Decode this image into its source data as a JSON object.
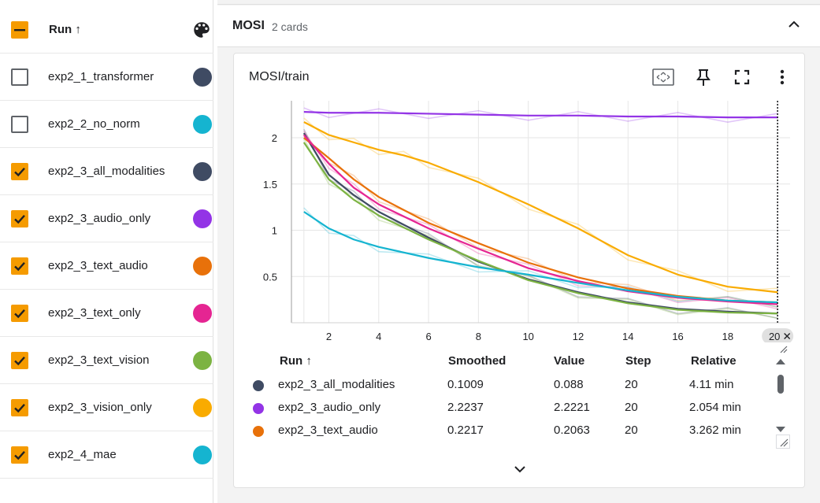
{
  "sidebar": {
    "header": {
      "label": "Run ↑",
      "palette_icon": "palette-icon"
    },
    "runs": [
      {
        "label": "exp2_1_transformer",
        "checked": false,
        "color": "#3f4b63"
      },
      {
        "label": "exp2_2_no_norm",
        "checked": false,
        "color": "#15b4d0"
      },
      {
        "label": "exp2_3_all_modalities",
        "checked": true,
        "color": "#3f4b63"
      },
      {
        "label": "exp2_3_audio_only",
        "checked": true,
        "color": "#9334e6"
      },
      {
        "label": "exp2_3_text_audio",
        "checked": true,
        "color": "#e8710a"
      },
      {
        "label": "exp2_3_text_only",
        "checked": true,
        "color": "#e52592"
      },
      {
        "label": "exp2_3_text_vision",
        "checked": true,
        "color": "#7cb342"
      },
      {
        "label": "exp2_3_vision_only",
        "checked": true,
        "color": "#f9ab00"
      },
      {
        "label": "exp2_4_mae",
        "checked": true,
        "color": "#15b4d0"
      }
    ]
  },
  "group": {
    "title": "MOSI",
    "count": "2 cards"
  },
  "card": {
    "title": "MOSI/train",
    "step_badge": "20"
  },
  "chart_data": {
    "type": "line",
    "x_ticks": [
      "2",
      "4",
      "6",
      "8",
      "10",
      "12",
      "14",
      "16",
      "18"
    ],
    "y_ticks": [
      "0.5",
      "1",
      "1.5",
      "2"
    ],
    "xlim": [
      0.5,
      20.5
    ],
    "ylim": [
      0,
      2.4
    ],
    "series": [
      {
        "name": "exp2_3_all_modalities",
        "color": "#3f4b63",
        "x": [
          1,
          2,
          3,
          4,
          6,
          8,
          10,
          12,
          14,
          16,
          18,
          20
        ],
        "y": [
          2.05,
          1.6,
          1.38,
          1.2,
          0.92,
          0.66,
          0.47,
          0.33,
          0.22,
          0.15,
          0.12,
          0.1
        ]
      },
      {
        "name": "exp2_3_audio_only",
        "color": "#9334e6",
        "x": [
          1,
          2,
          4,
          6,
          8,
          10,
          12,
          14,
          16,
          18,
          20
        ],
        "y": [
          2.28,
          2.27,
          2.27,
          2.26,
          2.25,
          2.24,
          2.24,
          2.23,
          2.23,
          2.22,
          2.22
        ]
      },
      {
        "name": "exp2_3_text_audio",
        "color": "#e8710a",
        "x": [
          1,
          2,
          3,
          4,
          6,
          8,
          10,
          12,
          14,
          16,
          18,
          20
        ],
        "y": [
          2.0,
          1.78,
          1.55,
          1.36,
          1.08,
          0.86,
          0.65,
          0.49,
          0.37,
          0.29,
          0.24,
          0.22
        ]
      },
      {
        "name": "exp2_3_text_only",
        "color": "#e52592",
        "x": [
          1,
          2,
          3,
          4,
          6,
          8,
          10,
          12,
          14,
          16,
          18,
          20
        ],
        "y": [
          2.03,
          1.72,
          1.46,
          1.28,
          1.02,
          0.8,
          0.59,
          0.45,
          0.34,
          0.27,
          0.23,
          0.2
        ]
      },
      {
        "name": "exp2_3_text_vision",
        "color": "#7cb342",
        "x": [
          1,
          2,
          3,
          4,
          6,
          8,
          10,
          12,
          14,
          16,
          18,
          20
        ],
        "y": [
          1.95,
          1.55,
          1.33,
          1.16,
          0.9,
          0.67,
          0.46,
          0.32,
          0.21,
          0.14,
          0.11,
          0.1
        ]
      },
      {
        "name": "exp2_3_vision_only",
        "color": "#f9ab00",
        "x": [
          1,
          2,
          3,
          4,
          5,
          6,
          8,
          10,
          12,
          14,
          16,
          18,
          20
        ],
        "y": [
          2.17,
          2.03,
          1.95,
          1.87,
          1.81,
          1.73,
          1.52,
          1.28,
          1.02,
          0.73,
          0.52,
          0.39,
          0.33
        ]
      },
      {
        "name": "exp2_4_mae",
        "color": "#15b4d0",
        "x": [
          1,
          2,
          3,
          4,
          6,
          8,
          10,
          12,
          14,
          16,
          18,
          20
        ],
        "y": [
          1.2,
          1.02,
          0.9,
          0.82,
          0.7,
          0.6,
          0.52,
          0.43,
          0.35,
          0.28,
          0.24,
          0.22
        ]
      }
    ]
  },
  "table": {
    "headers": {
      "run": "Run ↑",
      "smoothed": "Smoothed",
      "value": "Value",
      "step": "Step",
      "relative": "Relative"
    },
    "rows": [
      {
        "run": "exp2_3_all_modalities",
        "color": "#3f4b63",
        "smoothed": "0.1009",
        "value": "0.088",
        "step": "20",
        "relative": "4.11 min"
      },
      {
        "run": "exp2_3_audio_only",
        "color": "#9334e6",
        "smoothed": "2.2237",
        "value": "2.2221",
        "step": "20",
        "relative": "2.054 min"
      },
      {
        "run": "exp2_3_text_audio",
        "color": "#e8710a",
        "smoothed": "0.2217",
        "value": "0.2063",
        "step": "20",
        "relative": "3.262 min"
      }
    ]
  }
}
